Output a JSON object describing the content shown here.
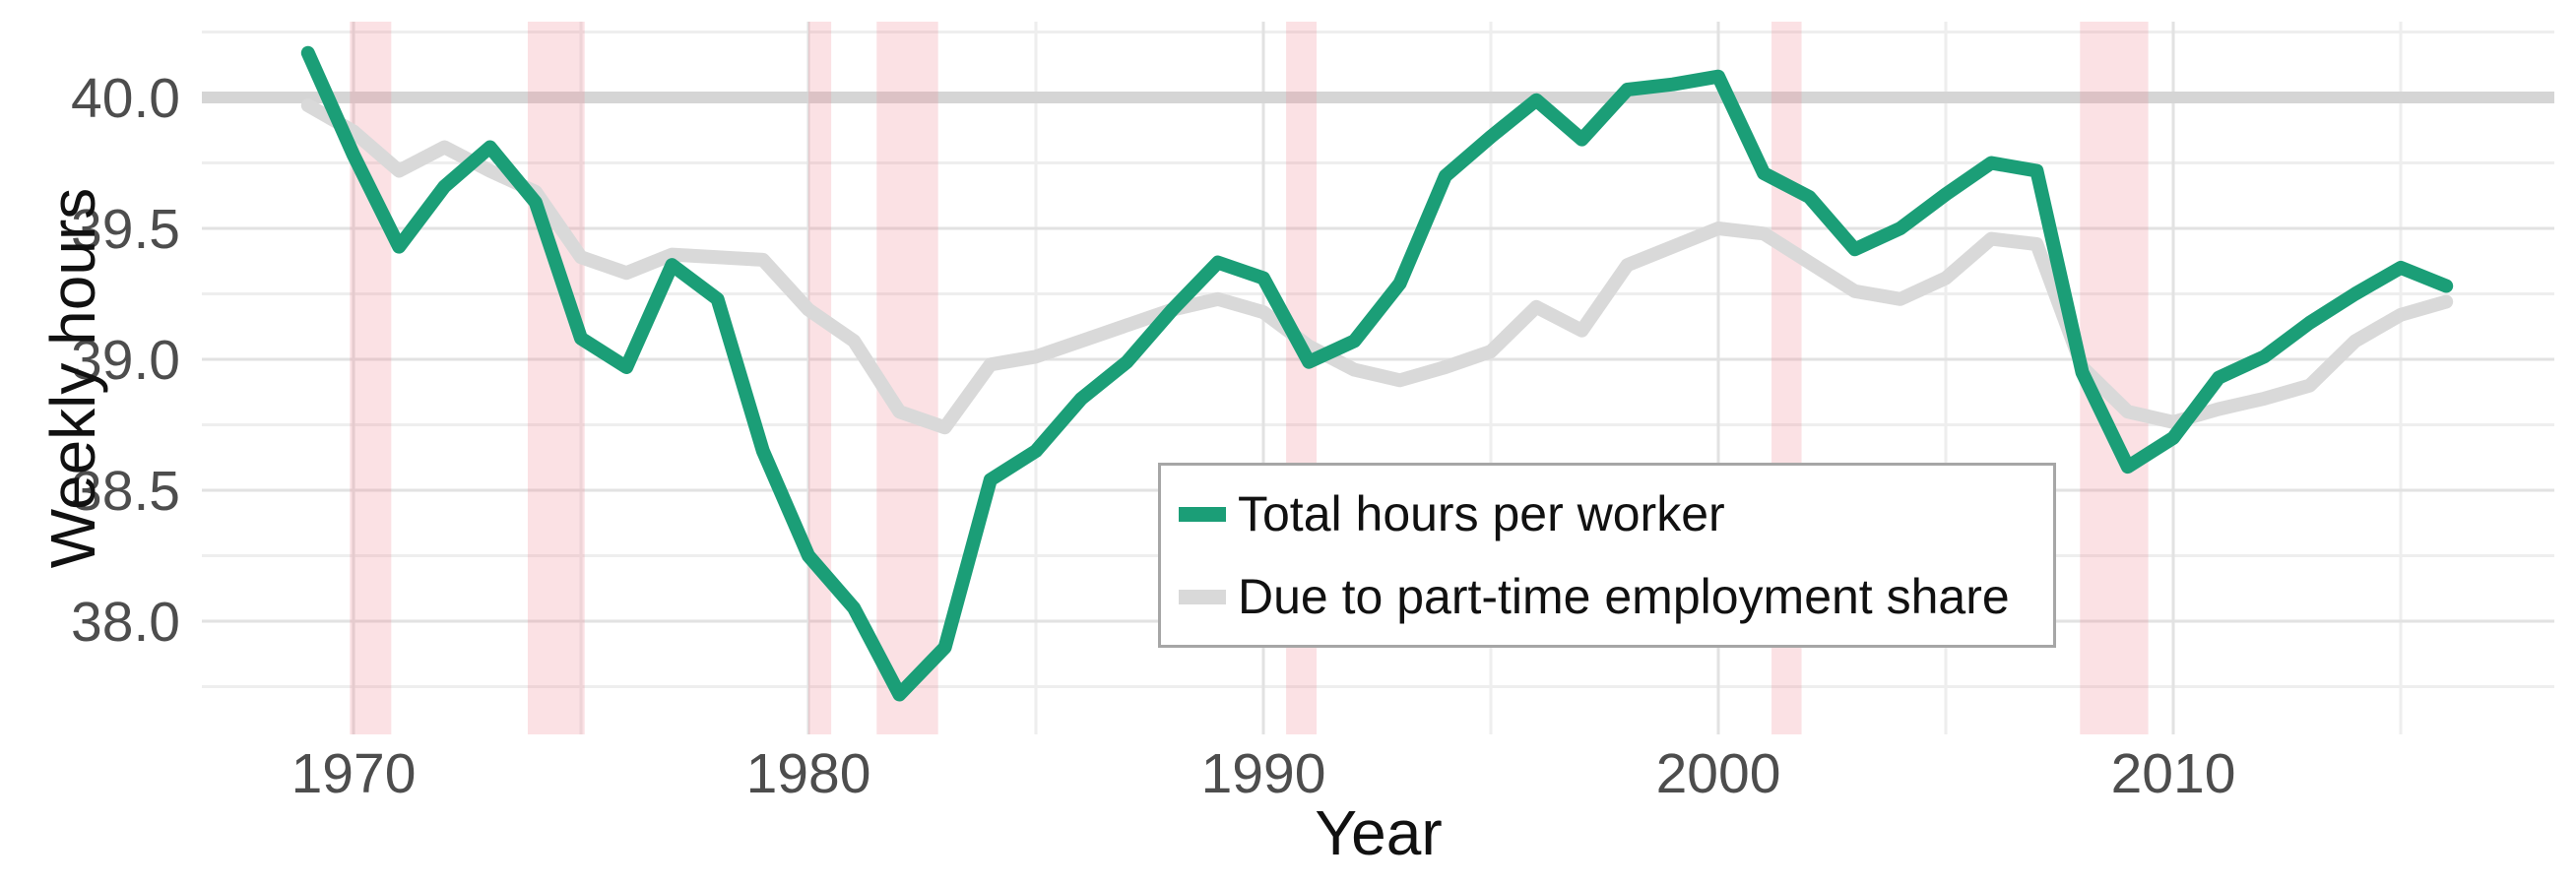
{
  "figure": {
    "y_axis_title": "Weekly hours",
    "x_axis_title": "Year"
  },
  "legend": {
    "items": [
      {
        "label": "Total hours per worker",
        "color": "#1b9e77"
      },
      {
        "label": "Due to part-time employment share",
        "color": "#d9d9d9"
      }
    ]
  },
  "colors": {
    "total_hours_line": "#1b9e77",
    "part_time_line": "#d9d9d9",
    "reference_line": "#d5d5d5",
    "recession_band": "rgba(238,140,150,0.26)",
    "grid_major": "#e2e2e2",
    "grid_minor": "#eeeeee",
    "tick_text": "#4d4d4d"
  },
  "chart_data": {
    "type": "line",
    "title": "",
    "xlabel": "Year",
    "ylabel": "Weekly hours",
    "grid": true,
    "legend_position": "inside-center",
    "xlim": [
      1966.7,
      2018.4
    ],
    "ylim": [
      37.57,
      40.29
    ],
    "reference_line_y": 40.0,
    "x_ticks": [
      1970,
      1980,
      1990,
      2000,
      2010
    ],
    "x_minor_ticks": [
      1975,
      1985,
      1995,
      2005,
      2015
    ],
    "y_ticks": [
      "38.0",
      "38.5",
      "39.0",
      "39.5",
      "40.0"
    ],
    "y_minor_ticks": [
      37.75,
      38.25,
      38.75,
      39.25,
      39.75,
      40.25
    ],
    "recession_bands": [
      [
        1969.92,
        1970.83
      ],
      [
        1973.83,
        1975.08
      ],
      [
        1980.0,
        1980.5
      ],
      [
        1981.5,
        1982.85
      ],
      [
        1990.5,
        1991.17
      ],
      [
        2001.17,
        2001.83
      ],
      [
        2007.95,
        2009.45
      ]
    ],
    "x": [
      1969,
      1970,
      1971,
      1972,
      1973,
      1974,
      1975,
      1976,
      1977,
      1978,
      1979,
      1980,
      1981,
      1982,
      1983,
      1984,
      1985,
      1986,
      1987,
      1988,
      1989,
      1990,
      1991,
      1992,
      1993,
      1994,
      1995,
      1996,
      1997,
      1998,
      1999,
      2000,
      2001,
      2002,
      2003,
      2004,
      2005,
      2006,
      2007,
      2008,
      2009,
      2010,
      2011,
      2012,
      2013,
      2014,
      2015,
      2016
    ],
    "series": [
      {
        "name": "Total hours per worker",
        "color": "#1b9e77",
        "values": [
          40.17,
          39.78,
          39.43,
          39.66,
          39.81,
          39.6,
          39.08,
          38.97,
          39.36,
          39.23,
          38.65,
          38.25,
          38.05,
          37.72,
          37.9,
          38.54,
          38.65,
          38.85,
          38.99,
          39.19,
          39.37,
          39.31,
          38.99,
          39.07,
          39.29,
          39.7,
          39.85,
          39.99,
          39.84,
          40.03,
          40.05,
          40.08,
          39.71,
          39.62,
          39.42,
          39.5,
          39.63,
          39.75,
          39.72,
          38.95,
          38.59,
          38.7,
          38.93,
          39.01,
          39.14,
          39.25,
          39.35,
          39.28
        ]
      },
      {
        "name": "Due to part-time employment share",
        "color": "#d9d9d9",
        "values": [
          39.97,
          39.87,
          39.72,
          39.81,
          39.72,
          39.64,
          39.39,
          39.33,
          39.4,
          39.39,
          39.38,
          39.19,
          39.07,
          38.8,
          38.74,
          38.98,
          39.01,
          39.07,
          39.13,
          39.19,
          39.23,
          39.18,
          39.05,
          38.96,
          38.92,
          38.97,
          39.03,
          39.2,
          39.11,
          39.36,
          39.43,
          39.5,
          39.48,
          39.37,
          39.26,
          39.23,
          39.31,
          39.46,
          39.44,
          38.97,
          38.8,
          38.76,
          38.81,
          38.85,
          38.9,
          39.07,
          39.17,
          39.22
        ]
      }
    ]
  }
}
